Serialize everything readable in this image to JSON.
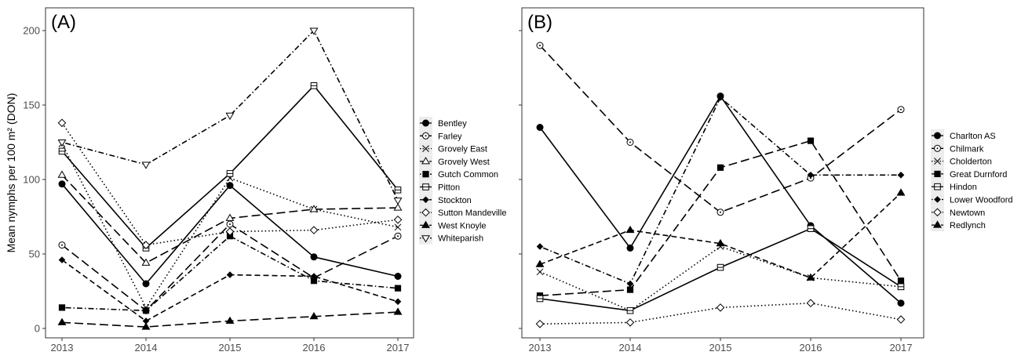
{
  "chart_data": [
    {
      "type": "line",
      "panel_label": "(A)",
      "ylabel": "Mean nymphs per 100 m² (DON)",
      "xlabel": "",
      "x": [
        2013,
        2014,
        2015,
        2016,
        2017
      ],
      "x_tick_labels": [
        "2013",
        "2014",
        "2015",
        "2016",
        "2017"
      ],
      "ylim": [
        0,
        210
      ],
      "y_ticks": [
        0,
        50,
        100,
        150,
        200
      ],
      "y_tick_labels": [
        "0",
        "50",
        "100",
        "150",
        "200"
      ],
      "grid": false,
      "legend_position": "right",
      "series": [
        {
          "name": "Bentley",
          "marker": "circle-filled",
          "dash": "solid",
          "values": [
            97,
            30,
            96,
            48,
            35
          ]
        },
        {
          "name": "Farley",
          "marker": "circle-dot",
          "dash": "longdash",
          "values": [
            56,
            12,
            70,
            34,
            62
          ]
        },
        {
          "name": "Grovely East",
          "marker": "x",
          "dash": "dotted",
          "values": [
            124,
            14,
            101,
            80,
            68
          ]
        },
        {
          "name": "Grovely West",
          "marker": "triangle-open",
          "dash": "longdash",
          "values": [
            103,
            44,
            74,
            80,
            81
          ]
        },
        {
          "name": "Gutch Common",
          "marker": "square-filled",
          "dash": "dotdash",
          "values": [
            14,
            12,
            62,
            32,
            27
          ]
        },
        {
          "name": "Pitton",
          "marker": "square-line",
          "dash": "solid",
          "values": [
            119,
            54,
            104,
            163,
            93
          ]
        },
        {
          "name": "Stockton",
          "marker": "diamond-filled",
          "dash": "dashed",
          "values": [
            46,
            5,
            36,
            35,
            18
          ]
        },
        {
          "name": "Sutton Mandeville",
          "marker": "diamond-open",
          "dash": "dotted",
          "values": [
            138,
            56,
            65,
            66,
            73
          ]
        },
        {
          "name": "West Knoyle",
          "marker": "triangle-filled",
          "dash": "longdash",
          "values": [
            4,
            1,
            5,
            8,
            11
          ]
        },
        {
          "name": "Whiteparish",
          "marker": "triangle-down-open",
          "dash": "dotdash",
          "values": [
            125,
            110,
            143,
            200,
            86
          ]
        }
      ]
    },
    {
      "type": "line",
      "panel_label": "(B)",
      "ylabel": "",
      "xlabel": "",
      "x": [
        2013,
        2014,
        2015,
        2016,
        2017
      ],
      "x_tick_labels": [
        "2013",
        "2014",
        "2015",
        "2016",
        "2017"
      ],
      "ylim": [
        0,
        210
      ],
      "y_ticks": [
        0,
        50,
        100,
        150,
        200
      ],
      "grid": false,
      "legend_position": "right",
      "series": [
        {
          "name": "Charlton AS",
          "marker": "circle-filled",
          "dash": "solid",
          "values": [
            135,
            54,
            156,
            69,
            17
          ]
        },
        {
          "name": "Chilmark",
          "marker": "circle-dot",
          "dash": "longdash",
          "values": [
            190,
            125,
            78,
            101,
            147
          ]
        },
        {
          "name": "Cholderton",
          "marker": "x",
          "dash": "dotted",
          "values": [
            38,
            12,
            55,
            34,
            28
          ]
        },
        {
          "name": "Great Durnford",
          "marker": "square-filled",
          "dash": "longdash",
          "values": [
            22,
            26,
            108,
            126,
            32
          ]
        },
        {
          "name": "Hindon",
          "marker": "square-line",
          "dash": "solid",
          "values": [
            20,
            12,
            41,
            67,
            28
          ]
        },
        {
          "name": "Lower Woodford",
          "marker": "diamond-filled",
          "dash": "dotdash",
          "values": [
            55,
            30,
            155,
            103,
            103
          ]
        },
        {
          "name": "Newtown",
          "marker": "diamond-open",
          "dash": "dotted",
          "values": [
            3,
            4,
            14,
            17,
            6
          ]
        },
        {
          "name": "Redlynch",
          "marker": "triangle-filled",
          "dash": "dashed",
          "values": [
            43,
            66,
            57,
            34,
            91
          ]
        }
      ]
    }
  ]
}
